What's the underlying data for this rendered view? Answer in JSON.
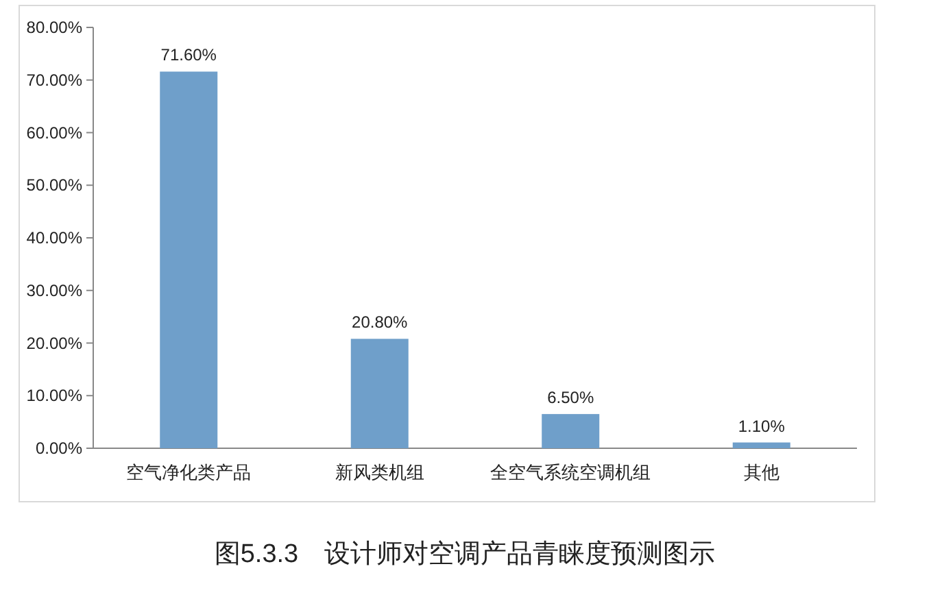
{
  "chart_data": {
    "type": "bar",
    "title": "图5.3.3　设计师对空调产品青睐度预测图示",
    "categories": [
      "空气净化类产品",
      "新风类机组",
      "全空气系统空调机组",
      "其他"
    ],
    "values": [
      71.6,
      20.8,
      6.5,
      1.1
    ],
    "value_labels": [
      "71.60%",
      "20.80%",
      "6.50%",
      "1.10%"
    ],
    "color": "#6f9fca",
    "ylim": [
      0,
      80
    ],
    "yticks": [
      {
        "value": 0,
        "label": "0.00%"
      },
      {
        "value": 10,
        "label": "10.00%"
      },
      {
        "value": 20,
        "label": "20.00%"
      },
      {
        "value": 30,
        "label": "30.00%"
      },
      {
        "value": 40,
        "label": "40.00%"
      },
      {
        "value": 50,
        "label": "50.00%"
      },
      {
        "value": 60,
        "label": "60.00%"
      },
      {
        "value": 70,
        "label": "70.00%"
      },
      {
        "value": 80,
        "label": "80.00%"
      }
    ]
  }
}
